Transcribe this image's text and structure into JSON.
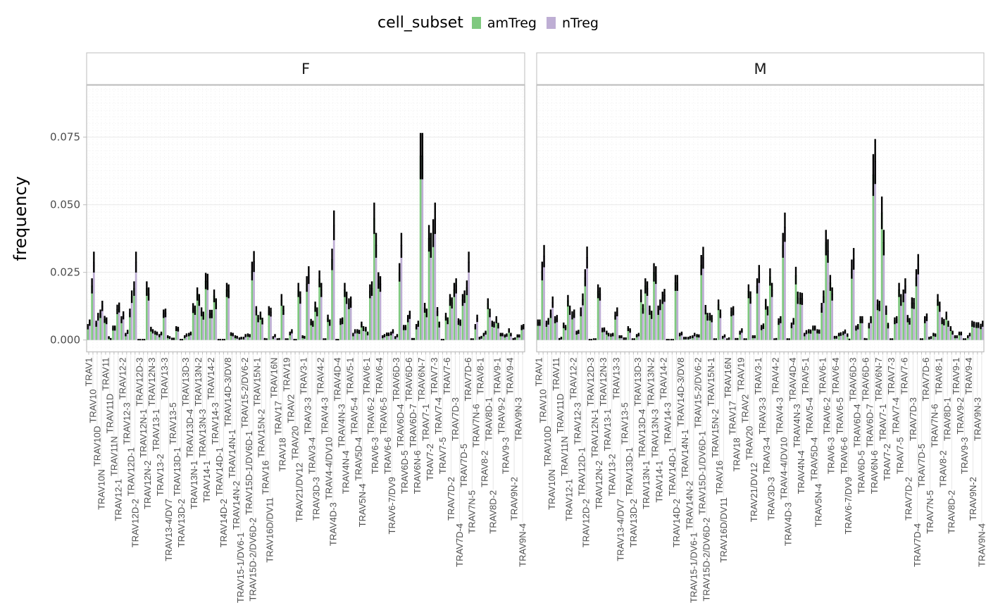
{
  "legend": {
    "title": "cell_subset",
    "items": [
      {
        "label": "amTreg",
        "color": "#7fc97f"
      },
      {
        "label": "nTreg",
        "color": "#beaed4"
      }
    ]
  },
  "chart_data": {
    "type": "bar",
    "ylabel": "frequency",
    "xlabel": "",
    "ylim": [
      -0.0044,
      0.0942
    ],
    "yticks": [
      {
        "value": 0,
        "label": "0.000"
      },
      {
        "value": 0.025,
        "label": "0.025"
      },
      {
        "value": 0.05,
        "label": "0.050"
      },
      {
        "value": 0.075,
        "label": "0.075"
      }
    ],
    "grid": true,
    "legend_position": "top",
    "categories": [
      "TRAV1",
      "TRAV10",
      "TRAV10D",
      "TRAV10N",
      "TRAV11",
      "TRAV11D",
      "TRAV11N",
      "TRAV12-1",
      "TRAV12-2",
      "TRAV12-3",
      "TRAV12D-1",
      "TRAV12D-2",
      "TRAV12D-3",
      "TRAV12N-1",
      "TRAV12N-2",
      "TRAV12N-3",
      "TRAV13-1",
      "TRAV13-2",
      "TRAV13-3",
      "TRAV13-4/DV7",
      "TRAV13-5",
      "TRAV13D-1",
      "TRAV13D-2",
      "TRAV13D-3",
      "TRAV13D-4",
      "TRAV13N-1",
      "TRAV13N-2",
      "TRAV13N-3",
      "TRAV14-1",
      "TRAV14-2",
      "TRAV14-3",
      "TRAV14D-1",
      "TRAV14D-2",
      "TRAV14D-3/DV8",
      "TRAV14N-1",
      "TRAV14N-2",
      "TRAV15-1/DV6-1",
      "TRAV15-2/DV6-2",
      "TRAV15D-1/DV6D-1",
      "TRAV15D-2/DV6D-2",
      "TRAV15N-1",
      "TRAV15N-2",
      "TRAV16",
      "TRAV16D/DV11",
      "TRAV16N",
      "TRAV17",
      "TRAV18",
      "TRAV19",
      "TRAV2",
      "TRAV20",
      "TRAV21/DV12",
      "TRAV3-1",
      "TRAV3-3",
      "TRAV3-4",
      "TRAV3D-3",
      "TRAV4-2",
      "TRAV4-3",
      "TRAV4-4/DV10",
      "TRAV4D-3",
      "TRAV4D-4",
      "TRAV4N-3",
      "TRAV4N-4",
      "TRAV5-1",
      "TRAV5-4",
      "TRAV5D-4",
      "TRAV5N-4",
      "TRAV6-1",
      "TRAV6-2",
      "TRAV6-3",
      "TRAV6-4",
      "TRAV6-5",
      "TRAV6-6",
      "TRAV6-7/DV9",
      "TRAV6D-3",
      "TRAV6D-4",
      "TRAV6D-5",
      "TRAV6D-6",
      "TRAV6D-7",
      "TRAV6N-6",
      "TRAV6N-7",
      "TRAV7-1",
      "TRAV7-2",
      "TRAV7-3",
      "TRAV7-4",
      "TRAV7-5",
      "TRAV7-6",
      "TRAV7D-2",
      "TRAV7D-3",
      "TRAV7D-4",
      "TRAV7D-5",
      "TRAV7D-6",
      "TRAV7N-5",
      "TRAV7N-6",
      "TRAV8-1",
      "TRAV8-2",
      "TRAV8D-1",
      "TRAV8D-2",
      "TRAV9-1",
      "TRAV9-2",
      "TRAV9-3",
      "TRAV9-4",
      "TRAV9N-2",
      "TRAV9N-3",
      "TRAV9N-4"
    ],
    "facets": [
      {
        "name": "F",
        "series": [
          {
            "name": "amTreg",
            "values": [
              0.0049,
              0.02,
              0.006,
              0.0097,
              0.0076,
              0.0009,
              0.0044,
              0.0113,
              0.0075,
              0.002,
              0.01,
              0.019,
              0,
              0,
              0.019,
              0.004,
              0.0027,
              0.0016,
              0.0097,
              0.0012,
              0.0004,
              0.0042,
              0,
              0.0012,
              0.002,
              0.0118,
              0.017,
              0.0104,
              0.0218,
              0.0096,
              0.0163,
              0,
              0,
              0.0185,
              0.0022,
              0.0012,
              0.0005,
              0.0007,
              0.0018,
              0.0255,
              0.0108,
              0.009,
              0.0003,
              0.0108,
              0.0009,
              0.0002,
              0.0148,
              0.0002,
              0.0024,
              0,
              0.0185,
              0.0012,
              0.0207,
              0.0066,
              0.0123,
              0.0226,
              0.0002,
              0.008,
              0.0298,
              0,
              0.0068,
              0.0185,
              0.0134,
              0.002,
              0.0032,
              0.0057,
              0.004,
              0.018,
              0.045,
              0.022,
              0.0012,
              0.0021,
              0.0024,
              0.0009,
              0.025,
              0.0046,
              0.0079,
              0.0003,
              0.0049,
              0.068,
              0.0119,
              0.0376,
              0.0395,
              0.0105,
              0,
              0.0086,
              0.0148,
              0.0185,
              0.0068,
              0.0148,
              0.0193,
              0.0002,
              0.0049,
              0.0007,
              0.002,
              0.0134,
              0.006,
              0.0075,
              0.002,
              0.0015,
              0.0035,
              0.0003,
              0.0015,
              0.0046
            ]
          },
          {
            "name": "nTreg",
            "values": [
              0.0064,
              0.0288,
              0.0086,
              0.0126,
              0.0071,
              0.0003,
              0.0044,
              0.012,
              0.0091,
              0.003,
              0.016,
              0.0288,
              0,
              0,
              0.017,
              0.0032,
              0.0024,
              0.0024,
              0.01,
              0.0009,
              0.0004,
              0.004,
              0,
              0.0018,
              0.0024,
              0.011,
              0.0148,
              0.009,
              0.0215,
              0.0096,
              0.0134,
              0,
              0,
              0.018,
              0.002,
              0.001,
              0.0007,
              0.0016,
              0.0016,
              0.029,
              0.0079,
              0.007,
              0.0002,
              0.0103,
              0.0016,
              0.0003,
              0.011,
              0.0002,
              0.0032,
              0,
              0.0157,
              0.001,
              0.024,
              0.006,
              0.0104,
              0.0185,
              0.0002,
              0.0064,
              0.0424,
              0,
              0.0071,
              0.0156,
              0.014,
              0.0032,
              0.003,
              0.0042,
              0.0024,
              0.019,
              0.035,
              0.0207,
              0.0016,
              0.0021,
              0.0032,
              0.0016,
              0.035,
              0.0046,
              0.0093,
              0.0003,
              0.006,
              0.068,
              0.01,
              0.035,
              0.045,
              0.0057,
              0,
              0.0071,
              0.0137,
              0.02,
              0.0064,
              0.016,
              0.0288,
              0.0002,
              0.008,
              0.001,
              0.0027,
              0.01,
              0.0057,
              0.0053,
              0.002,
              0.0018,
              0.002,
              0.0005,
              0.0015,
              0.0049
            ]
          }
        ]
      },
      {
        "name": "M",
        "series": [
          {
            "name": "amTreg",
            "values": [
              0.0064,
              0.0255,
              0.006,
              0.0097,
              0.0075,
              0.0003,
              0.0054,
              0.0145,
              0.0091,
              0.0027,
              0.0104,
              0.023,
              0,
              0.0002,
              0.018,
              0.0037,
              0.0027,
              0.0018,
              0.009,
              0.0012,
              0.0005,
              0.0042,
              0.0002,
              0.0016,
              0.0163,
              0.02,
              0.011,
              0.025,
              0.011,
              0.0156,
              0,
              0,
              0.0211,
              0.002,
              0.0007,
              0.0007,
              0.0012,
              0.0016,
              0.0277,
              0.0112,
              0.0086,
              0.0002,
              0.013,
              0.001,
              0.0002,
              0.0104,
              0.0003,
              0.0027,
              0.0002,
              0.018,
              0.0012,
              0.02,
              0.0046,
              0.0132,
              0.0233,
              0.0002,
              0.0068,
              0.035,
              0.0002,
              0.0054,
              0.0238,
              0.0154,
              0.002,
              0.0032,
              0.0044,
              0.0032,
              0.0119,
              0.036,
              0.0211,
              0.001,
              0.002,
              0.0025,
              0.0018,
              0.0262,
              0.0044,
              0.0075,
              0.0003,
              0.0053,
              0.061,
              0.013,
              0.047,
              0.011,
              0.0002,
              0.0071,
              0.0185,
              0.0163,
              0.0079,
              0.0137,
              0.023,
              0.0002,
              0.0075,
              0.0007,
              0.002,
              0.0148,
              0.0071,
              0.009,
              0.0042,
              0.0012,
              0.0024,
              0.0002,
              0.0012,
              0.006,
              0.0055,
              0.005
            ]
          },
          {
            "name": "nTreg",
            "values": [
              0.0064,
              0.031,
              0.0069,
              0.014,
              0.0079,
              0.0007,
              0.0046,
              0.011,
              0.0097,
              0.003,
              0.015,
              0.0305,
              0,
              0.0002,
              0.017,
              0.0038,
              0.002,
              0.002,
              0.0104,
              0.0012,
              0.0005,
              0.0035,
              0.0002,
              0.002,
              0.0115,
              0.019,
              0.0093,
              0.024,
              0.013,
              0.0165,
              0,
              0,
              0.0211,
              0.0024,
              0.0007,
              0.001,
              0.002,
              0.0015,
              0.0304,
              0.0086,
              0.0079,
              0.0002,
              0.0097,
              0.0015,
              0.0005,
              0.0108,
              0.0003,
              0.0035,
              0.0002,
              0.0157,
              0.0012,
              0.0244,
              0.0051,
              0.0108,
              0.0185,
              0.0003,
              0.0075,
              0.0417,
              0.0002,
              0.0069,
              0.0156,
              0.0152,
              0.0029,
              0.0031,
              0.0044,
              0.0031,
              0.016,
              0.0329,
              0.017,
              0.001,
              0.0022,
              0.0031,
              0.0001,
              0.03,
              0.0049,
              0.0075,
              0.0002,
              0.0075,
              0.066,
              0.0126,
              0.036,
              0.0053,
              0.0002,
              0.0075,
              0.0148,
              0.02,
              0.0069,
              0.0135,
              0.028,
              0.0002,
              0.0084,
              0.0009,
              0.0018,
              0.0123,
              0.0066,
              0.006,
              0.0027,
              0.0012,
              0.0024,
              0.0002,
              0.002,
              0.0057,
              0.0055,
              0.006
            ]
          }
        ]
      }
    ]
  }
}
